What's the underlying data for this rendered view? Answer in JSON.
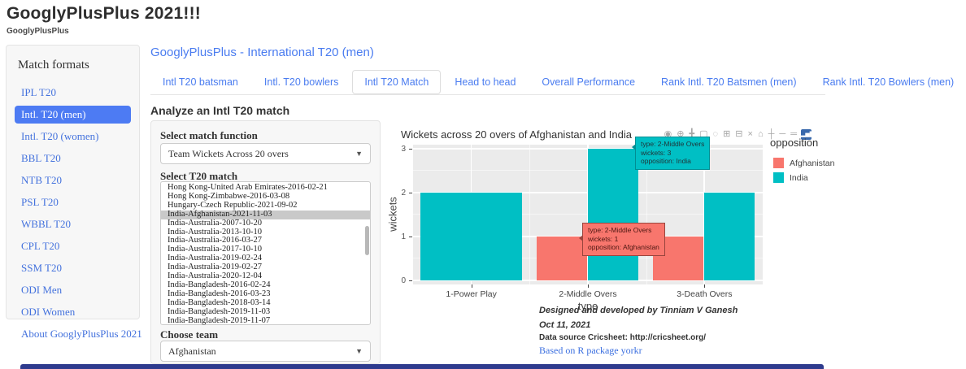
{
  "header": {
    "title": "GooglyPlusPlus 2021!!!",
    "subtitle": "GooglyPlusPlus"
  },
  "sidebar": {
    "title": "Match formats",
    "items": [
      {
        "label": "IPL T20",
        "active": false
      },
      {
        "label": "Intl. T20 (men)",
        "active": true
      },
      {
        "label": "Intl. T20 (women)",
        "active": false
      },
      {
        "label": "BBL T20",
        "active": false
      },
      {
        "label": "NTB T20",
        "active": false
      },
      {
        "label": "PSL T20",
        "active": false
      },
      {
        "label": "WBBL T20",
        "active": false
      },
      {
        "label": "CPL T20",
        "active": false
      },
      {
        "label": "SSM T20",
        "active": false
      },
      {
        "label": "ODI Men",
        "active": false
      },
      {
        "label": "ODI Women",
        "active": false
      },
      {
        "label": "About GooglyPlusPlus 2021",
        "active": false
      }
    ]
  },
  "main": {
    "section_title": "GooglyPlusPlus - International T20 (men)",
    "tabs": [
      {
        "label": "Intl T20 batsman",
        "active": false
      },
      {
        "label": "Intl. T20 bowlers",
        "active": false
      },
      {
        "label": "Intl T20 Match",
        "active": true
      },
      {
        "label": "Head to head",
        "active": false
      },
      {
        "label": "Overall Performance",
        "active": false
      },
      {
        "label": "Rank Intl. T20 Batsmen (men)",
        "active": false
      },
      {
        "label": "Rank Intl. T20 Bowlers (men)",
        "active": false
      }
    ],
    "analyze_heading": "Analyze an Intl T20 match",
    "form": {
      "match_function_label": "Select match function",
      "match_function_value": "Team Wickets Across 20 overs",
      "match_list_label": "Select T20 match",
      "selected_match": "India-Afghanistan-2021-11-03",
      "matches": [
        "Hong Kong-United Arab Emirates-2016-02-21",
        "Hong Kong-Zimbabwe-2016-03-08",
        "Hungary-Czech Republic-2021-09-02",
        "India-Afghanistan-2021-11-03",
        "India-Australia-2007-10-20",
        "India-Australia-2013-10-10",
        "India-Australia-2016-03-27",
        "India-Australia-2017-10-10",
        "India-Australia-2019-02-24",
        "India-Australia-2019-02-27",
        "India-Australia-2020-12-04",
        "India-Bangladesh-2016-02-24",
        "India-Bangladesh-2016-03-23",
        "India-Bangladesh-2018-03-14",
        "India-Bangladesh-2019-11-03",
        "India-Bangladesh-2019-11-07"
      ],
      "team_label": "Choose team",
      "team_value": "Afghanistan"
    },
    "footer": {
      "designed": "Designed and developed by Tinniam V Ganesh",
      "date": "Oct 11, 2021",
      "source": "Data source Cricsheet: http://cricsheet.org/",
      "package": "Based on R package yorkr"
    }
  },
  "modebar": {
    "icons": [
      {
        "name": "camera-icon",
        "glyph": "◉"
      },
      {
        "name": "zoom-icon",
        "glyph": "⊕"
      },
      {
        "name": "pan-icon",
        "glyph": "╋"
      },
      {
        "name": "box-select-icon",
        "glyph": "▢"
      },
      {
        "name": "lasso-select-icon",
        "glyph": "◌"
      },
      {
        "name": "zoom-in-icon",
        "glyph": "⊞"
      },
      {
        "name": "zoom-out-icon",
        "glyph": "⊟"
      },
      {
        "name": "autoscale-icon",
        "glyph": "×"
      },
      {
        "name": "reset-axes-icon",
        "glyph": "⌂"
      },
      {
        "name": "spike-lines-icon",
        "glyph": "┼"
      },
      {
        "name": "hover-closest-icon",
        "glyph": "─"
      },
      {
        "name": "hover-compare-icon",
        "glyph": "═"
      }
    ],
    "logo_glyph": "▂▅▇"
  },
  "chart_data": {
    "type": "bar",
    "title": "Wickets across 20 overs of  Afghanistan and India",
    "categories": [
      "1-Power Play",
      "2-Middle Overs",
      "3-Death Overs"
    ],
    "series": [
      {
        "name": "Afghanistan",
        "color": "#F8766D",
        "values": [
          0,
          1,
          1
        ]
      },
      {
        "name": "India",
        "color": "#00BFC4",
        "values": [
          2,
          3,
          2
        ]
      }
    ],
    "xlabel": "type",
    "ylabel": "wickets",
    "ylim": [
      0,
      3
    ],
    "yticks": [
      0,
      1,
      2,
      3
    ],
    "grid": true,
    "plot_bg": "#EBEBEB",
    "legend_title": "opposition",
    "legend_position": "right",
    "tooltips": [
      {
        "series": "India",
        "lines": [
          "type: 2-Middle Overs",
          "wickets: 3",
          "opposition: India"
        ]
      },
      {
        "series": "Afghanistan",
        "lines": [
          "type: 2-Middle Overs",
          "wickets: 1",
          "opposition: Afghanistan"
        ]
      }
    ]
  },
  "colors": {
    "accent_blue": "#4a7cf0",
    "sidebar_active": "#4d7bf3",
    "bar_afghanistan": "#F8766D",
    "bar_india": "#00BFC4",
    "plot_background": "#EBEBEB",
    "bottom_bar": "#2e3b8e"
  }
}
